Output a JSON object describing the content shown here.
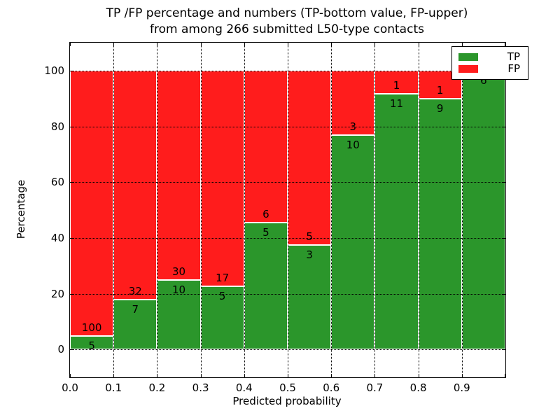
{
  "chart_data": {
    "type": "bar",
    "stacked": true,
    "normalized_to_percent": true,
    "title": "TP /FP percentage and numbers (TP-bottom value, FP-upper)",
    "subtitle": "from among 266 submitted L50-type contacts",
    "xlabel": "Predicted probability",
    "ylabel": "Percentage",
    "x_tick_labels": [
      "0.0",
      "0.1",
      "0.2",
      "0.3",
      "0.4",
      "0.5",
      "0.6",
      "0.7",
      "0.8",
      "0.9"
    ],
    "y_ticks": [
      0,
      20,
      40,
      60,
      80,
      100
    ],
    "ylim": [
      -10,
      110
    ],
    "xlim": [
      0.0,
      1.0
    ],
    "bin_width": 0.1,
    "grid": "dotted",
    "legend_position": "upper right",
    "series": [
      {
        "name": "TP",
        "color": "#2b962b",
        "counts": [
          5,
          7,
          10,
          5,
          5,
          3,
          10,
          11,
          9,
          6
        ]
      },
      {
        "name": "FP",
        "color": "#ff1c1c",
        "counts": [
          100,
          32,
          30,
          17,
          6,
          5,
          3,
          1,
          1,
          0
        ]
      }
    ],
    "tp_percent": [
      4.76,
      17.95,
      25.0,
      22.73,
      45.45,
      37.5,
      76.92,
      91.67,
      90.0,
      100.0
    ],
    "annotation_note": "FP count printed above TP/FP boundary, TP count below"
  }
}
